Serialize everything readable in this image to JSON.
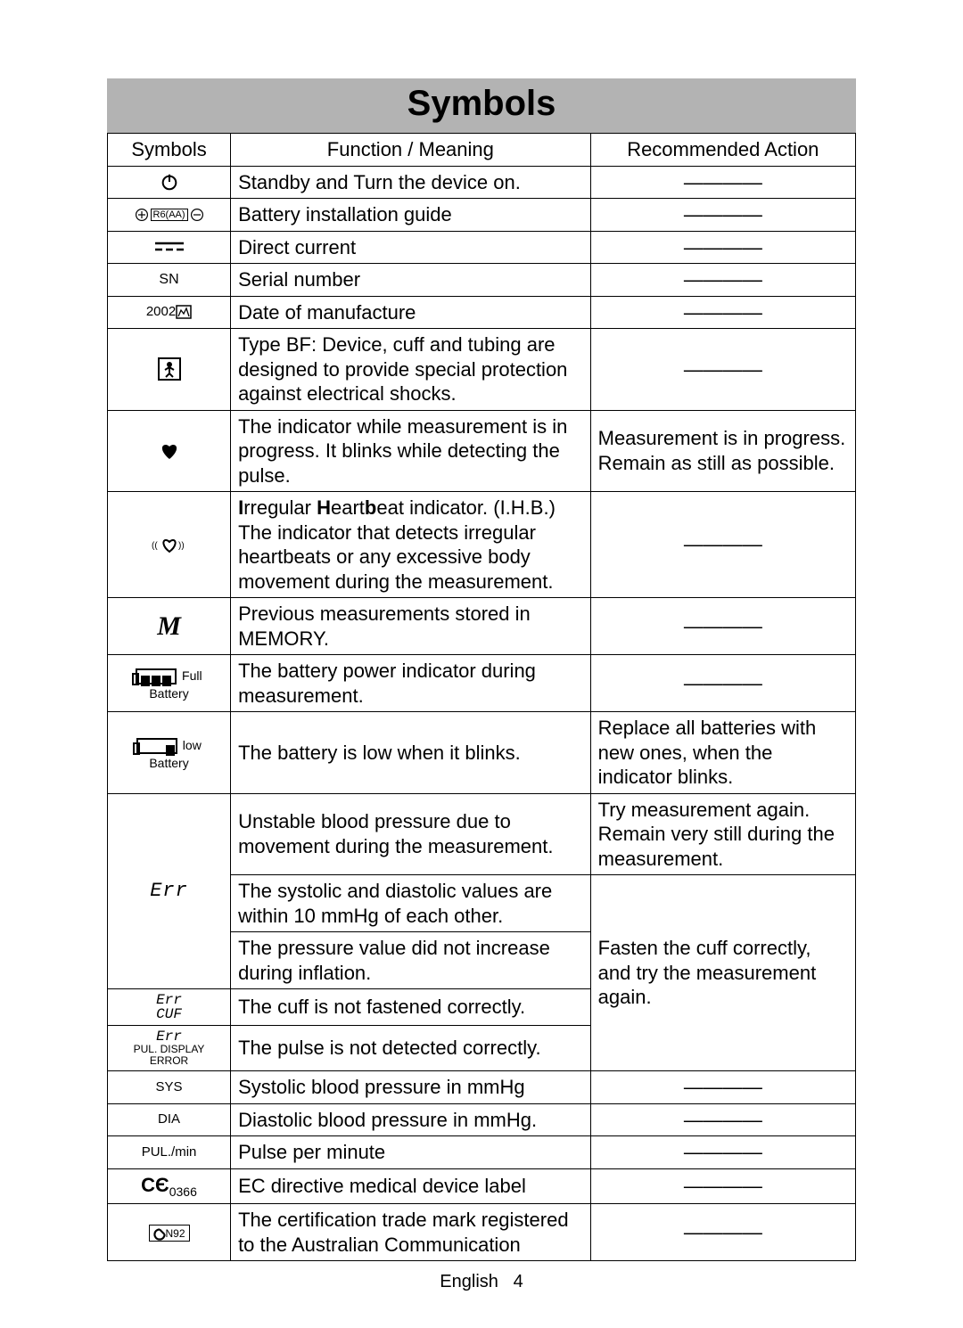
{
  "title": "Symbols",
  "headers": {
    "c1": "Symbols",
    "c2": "Function / Meaning",
    "c3": "Recommended Action"
  },
  "dash": "————",
  "rows": {
    "standby": {
      "meaning": "Standby and Turn the device on."
    },
    "battery_guide": {
      "label": "R6(AA)",
      "meaning": "Battery installation guide"
    },
    "dc": {
      "meaning": "Direct current"
    },
    "sn": {
      "label": "SN",
      "meaning": "Serial number"
    },
    "dom": {
      "label": "2002",
      "meaning": "Date of manufacture"
    },
    "bf": {
      "meaning": "Type BF: Device, cuff and tubing are designed to provide special protection against electrical shocks."
    },
    "heart": {
      "meaning": "The indicator while measurement is in progress. It blinks while detecting the pulse.",
      "action": "Measurement is in progress. Remain as still as possible."
    },
    "ihb": {
      "html": "<b>I</b>rregular <b>H</b>eart<b>b</b>eat indicator. (I.H.B.)<br>The indicator that detects irregular heartbeats or any excessive body movement during the measurement."
    },
    "memory": {
      "label": "M",
      "meaning": "Previous measurements stored in MEMORY."
    },
    "batt_full": {
      "label_side": "Full",
      "label_below": "Battery",
      "meaning": "The battery power indicator during measurement."
    },
    "batt_low": {
      "label_side": "low",
      "label_below": "Battery",
      "meaning": "The battery is low when it blinks.",
      "action": "Replace all batteries with new ones, when the indicator blinks."
    },
    "err_unstable": {
      "meaning": "Unstable blood pressure due to movement during the measurement.",
      "action": "Try measurement again. Remain very still during the measurement."
    },
    "err_label": "Err",
    "err_sysdia": {
      "meaning": "The systolic and diastolic values are within 10 mmHg of each other."
    },
    "err_inflate": {
      "meaning": "The pressure value did not increase during inflation."
    },
    "err_group_action": "Fasten the cuff correctly, and try the measurement again.",
    "err_cuf": {
      "l1": "Err",
      "l2": "CUF",
      "meaning": "The cuff is not fastened correctly."
    },
    "err_pul": {
      "l1": "Err",
      "l2": "PUL. DISPLAY ERROR",
      "meaning": "The pulse is not detected correctly."
    },
    "sys": {
      "label": "SYS",
      "meaning": "Systolic blood pressure in mmHg"
    },
    "dia": {
      "label": "DIA",
      "meaning": "Diastolic blood pressure in mmHg."
    },
    "pul": {
      "label": "PUL./min",
      "meaning": "Pulse per minute"
    },
    "ce": {
      "label": "0366",
      "meaning": "EC directive medical device label"
    },
    "ctick": {
      "label": "N92",
      "meaning": "The certification trade mark registered to the Australian Communication"
    }
  },
  "footer": {
    "lang": "English",
    "page": "4"
  }
}
